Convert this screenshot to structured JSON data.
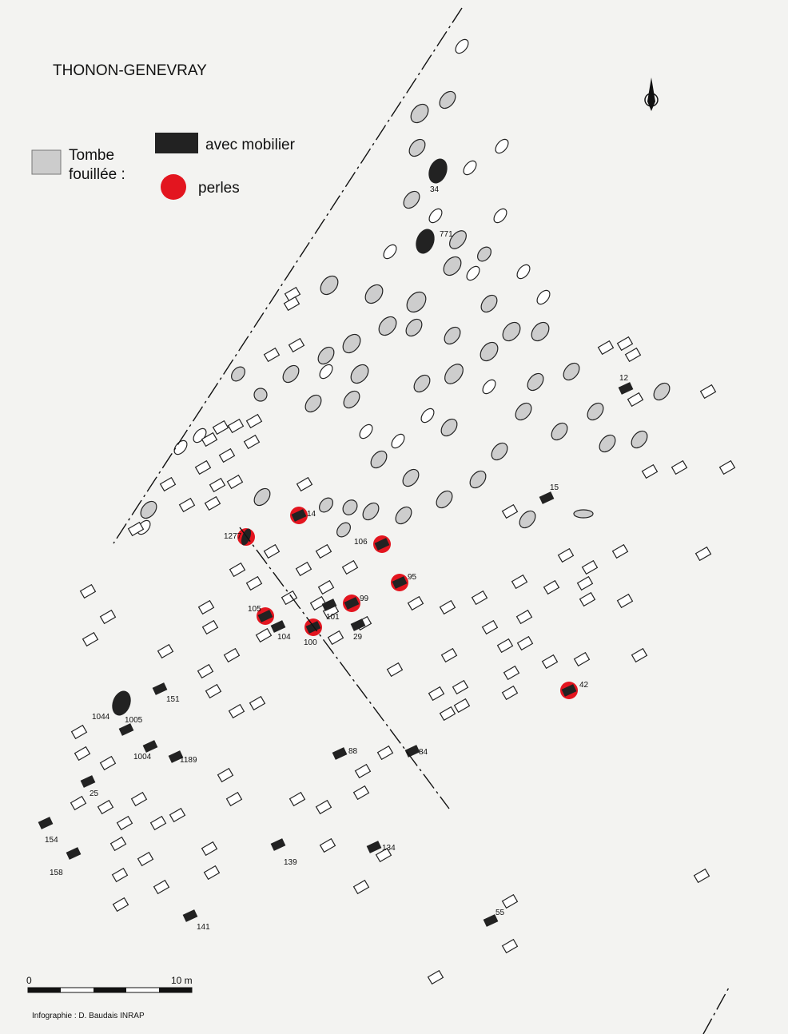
{
  "title": "THONON-GENEVRAY",
  "legend": {
    "tombe": "Tombe",
    "fouillee": "fouillée :",
    "mobilier": "avec mobilier",
    "perles": "perles"
  },
  "labels": [
    "34",
    "771",
    "12",
    "15",
    "14",
    "1277",
    "106",
    "95",
    "99",
    "105",
    "101",
    "104",
    "100",
    "29",
    "42",
    "1044",
    "151",
    "1005",
    "1004",
    "1189",
    "88",
    "84",
    "25",
    "154",
    "139",
    "134",
    "158",
    "141",
    "55"
  ],
  "scale": {
    "start": "0",
    "end": "10 m"
  },
  "credit": "Infographie : D. Baudais INRAP"
}
